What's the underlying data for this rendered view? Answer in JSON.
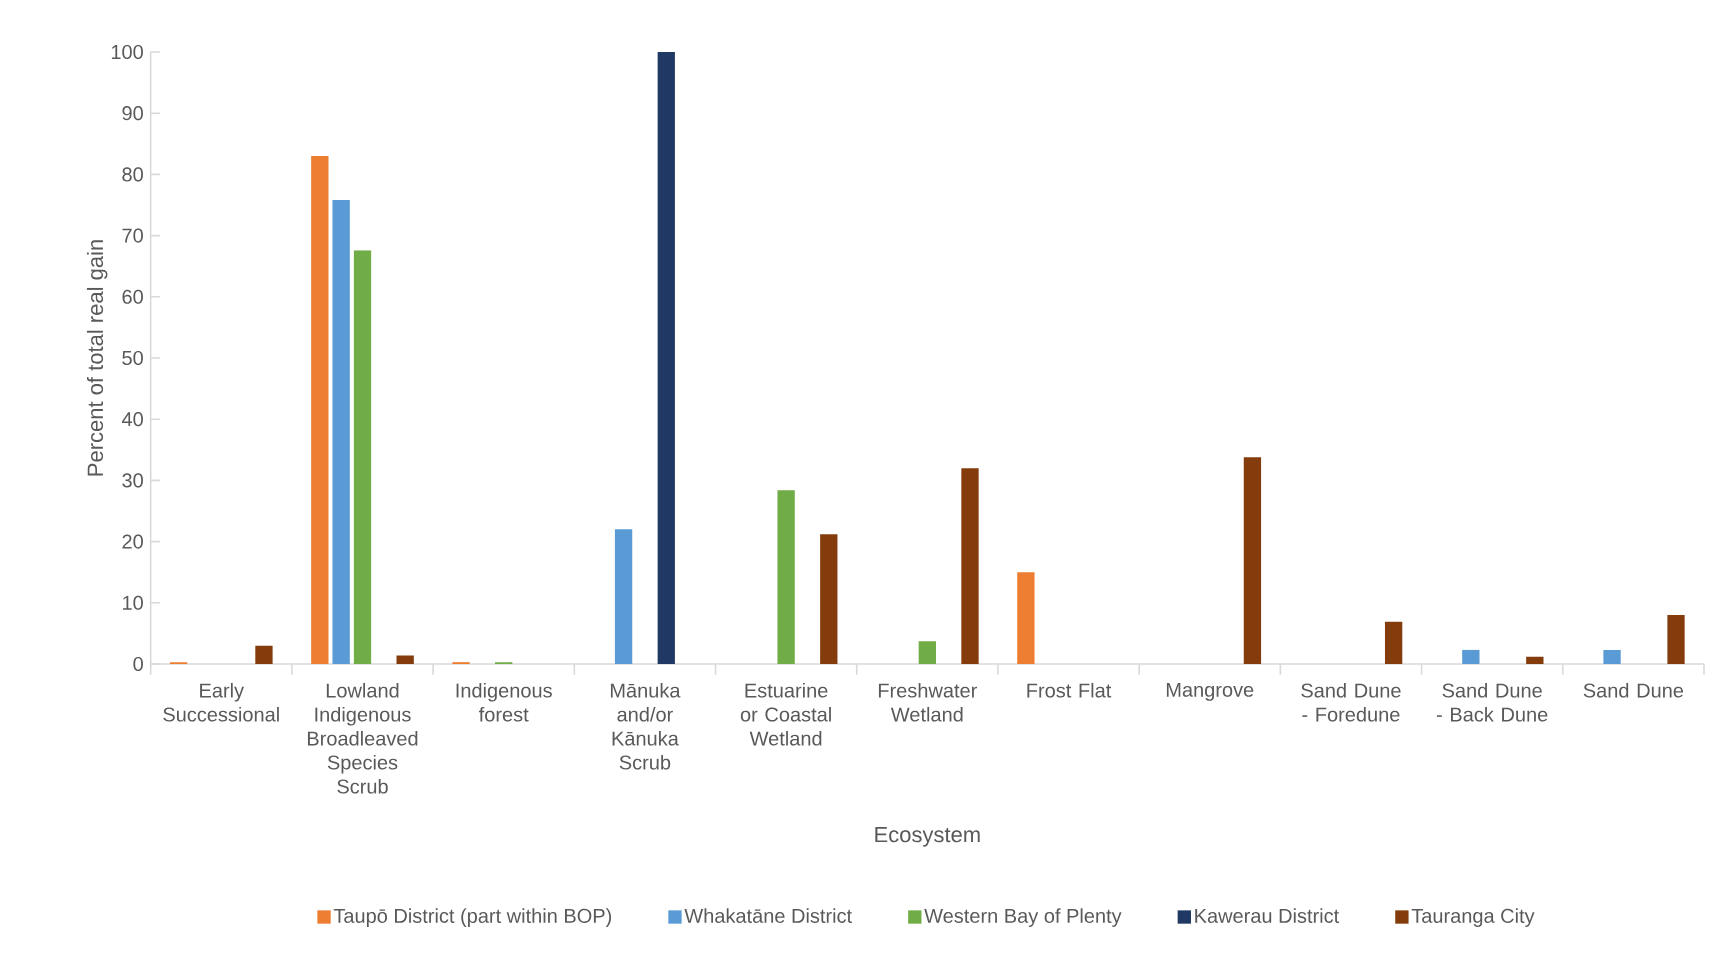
{
  "chart_data": {
    "type": "bar",
    "xlabel": "Ecosystem",
    "ylabel": "Percent of total real gain",
    "categories": [
      "Early Successional",
      "Lowland Indigenous Broadleaved Species Scrub",
      "Indigenous forest",
      "Mānuka and/or Kānuka Scrub",
      "Estuarine or Coastal Wetland",
      "Freshwater Wetland",
      "Frost Flat",
      "Mangrove",
      "Sand Dune - Foredune",
      "Sand Dune - Back Dune",
      "Sand Dune"
    ],
    "series": [
      {
        "name": "Taupō District (part within BOP)",
        "color": "#ed7d31",
        "values": [
          0.3,
          83,
          0.3,
          null,
          null,
          null,
          15,
          null,
          null,
          null,
          null
        ]
      },
      {
        "name": "Whakatāne District",
        "color": "#5b9bd5",
        "values": [
          null,
          75.8,
          null,
          22,
          null,
          null,
          null,
          null,
          null,
          2.3,
          2.3
        ]
      },
      {
        "name": "Western Bay of Plenty",
        "color": "#70ad47",
        "values": [
          null,
          67.6,
          0.3,
          null,
          28.4,
          3.7,
          null,
          null,
          null,
          null,
          null
        ]
      },
      {
        "name": "Kawerau District",
        "color": "#203864",
        "values": [
          null,
          null,
          null,
          100,
          null,
          null,
          null,
          null,
          null,
          null,
          null
        ]
      },
      {
        "name": "Tauranga City",
        "color": "#843c0c",
        "values": [
          3,
          1.4,
          null,
          null,
          21.2,
          32,
          null,
          33.8,
          6.9,
          1.2,
          8
        ]
      }
    ],
    "ylim": [
      0,
      100
    ],
    "yticks": [
      0,
      10,
      20,
      30,
      40,
      50,
      60,
      70,
      80,
      90,
      100
    ],
    "legend": "bottom"
  }
}
